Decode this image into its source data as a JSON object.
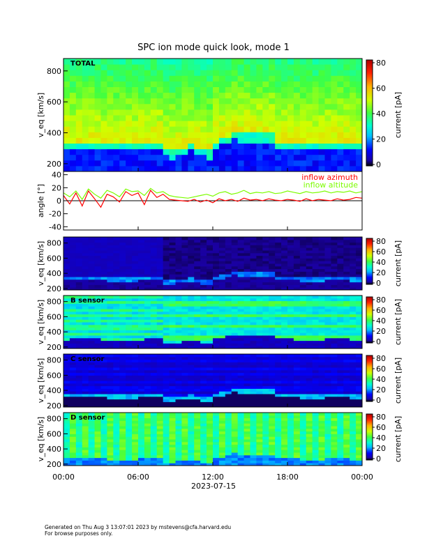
{
  "chart_data": {
    "type": "heatmap",
    "title": "SPC ion mode quick look, mode 1",
    "date_label": "2023-07-15",
    "x_tick_labels": [
      "00:00",
      "06:00",
      "12:00",
      "18:00",
      "00:00"
    ],
    "x_range_hours": [
      0,
      24
    ],
    "colorbar_label": "current [pA]",
    "colorbar_range": [
      0,
      80
    ],
    "panels": [
      {
        "name": "total",
        "label": "TOTAL",
        "ylabel": "v_eq [km/s]",
        "ylim": [
          150,
          880
        ],
        "y_ticks": [
          200,
          400,
          600,
          800
        ],
        "cbar_ticks": [
          0,
          20,
          40,
          60,
          80
        ]
      },
      {
        "name": "angle",
        "label": "",
        "ylabel": "angle [°]",
        "ylim": [
          -45,
          45
        ],
        "y_ticks": [
          -40,
          -20,
          0,
          20,
          40
        ],
        "series": [
          {
            "name": "inflow azimuth",
            "color": "#ff0000",
            "x": [
              0,
              0.5,
              1,
              1.5,
              2,
              2.5,
              3,
              3.5,
              4,
              4.5,
              5,
              5.5,
              6,
              6.5,
              7,
              7.5,
              8,
              8.5,
              9,
              9.5,
              10,
              10.5,
              11,
              11.5,
              12,
              12.5,
              13,
              13.5,
              14,
              14.5,
              15,
              15.5,
              16,
              16.5,
              17,
              17.5,
              18,
              18.5,
              19,
              19.5,
              20,
              20.5,
              21,
              21.5,
              22,
              22.5,
              23,
              23.5,
              24
            ],
            "y": [
              8,
              -5,
              12,
              -8,
              15,
              3,
              -10,
              10,
              6,
              -2,
              14,
              8,
              12,
              -6,
              16,
              5,
              10,
              2,
              1,
              0,
              -1,
              2,
              -2,
              1,
              -3,
              3,
              0,
              2,
              -1,
              4,
              1,
              2,
              0,
              3,
              1,
              0,
              2,
              1,
              -1,
              3,
              0,
              2,
              1,
              0,
              3,
              1,
              2,
              5,
              4
            ]
          },
          {
            "name": "inflow altitude",
            "color": "#7cfc00",
            "x": [
              0,
              0.5,
              1,
              1.5,
              2,
              2.5,
              3,
              3.5,
              4,
              4.5,
              5,
              5.5,
              6,
              6.5,
              7,
              7.5,
              8,
              8.5,
              9,
              9.5,
              10,
              10.5,
              11,
              11.5,
              12,
              12.5,
              13,
              13.5,
              14,
              14.5,
              15,
              15.5,
              16,
              16.5,
              17,
              17.5,
              18,
              18.5,
              19,
              19.5,
              20,
              20.5,
              21,
              21.5,
              22,
              22.5,
              23,
              23.5,
              24
            ],
            "y": [
              12,
              6,
              15,
              2,
              18,
              10,
              4,
              16,
              12,
              6,
              18,
              14,
              15,
              8,
              19,
              12,
              14,
              8,
              6,
              5,
              4,
              6,
              8,
              10,
              7,
              12,
              14,
              10,
              12,
              16,
              11,
              13,
              12,
              14,
              11,
              12,
              15,
              13,
              11,
              14,
              12,
              13,
              15,
              12,
              14,
              13,
              15,
              12,
              14
            ]
          }
        ]
      },
      {
        "name": "a-sensor",
        "label": "",
        "ylabel": "v_eq [km/s]",
        "ylim": [
          180,
          880
        ],
        "y_ticks": [
          200,
          400,
          600,
          800
        ],
        "cbar_ticks": [
          0,
          20,
          40,
          60,
          80
        ]
      },
      {
        "name": "b-sensor",
        "label": "B sensor",
        "ylabel": "v_eq [km/s]",
        "ylim": [
          180,
          880
        ],
        "y_ticks": [
          200,
          400,
          600,
          800
        ],
        "cbar_ticks": [
          0,
          20,
          40,
          60,
          80
        ]
      },
      {
        "name": "c-sensor",
        "label": "C sensor",
        "ylabel": "v_eq [km/s]",
        "ylim": [
          180,
          880
        ],
        "y_ticks": [
          200,
          400,
          600,
          800
        ],
        "cbar_ticks": [
          0,
          20,
          40,
          60,
          80
        ]
      },
      {
        "name": "d-sensor",
        "label": "D sensor",
        "ylabel": "v_eq [km/s]",
        "ylim": [
          180,
          880
        ],
        "y_ticks": [
          200,
          400,
          600,
          800
        ],
        "cbar_ticks": [
          0,
          20,
          40,
          60,
          80
        ]
      }
    ]
  },
  "footer": {
    "line1": "Generated on Thu Aug  3 13:07:01 2023 by mstevens@cfa.harvard.edu",
    "line2": "For browse purposes only."
  }
}
